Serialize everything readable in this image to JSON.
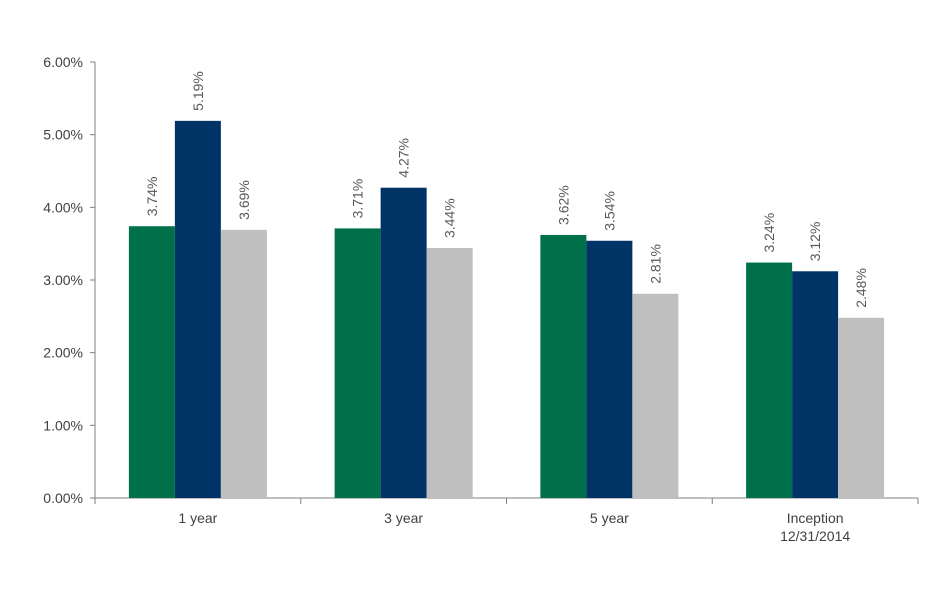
{
  "chart_data": {
    "type": "bar",
    "title": "",
    "xlabel": "",
    "ylabel": "",
    "ylim": [
      0,
      6
    ],
    "yticks": [
      0,
      1,
      2,
      3,
      4,
      5,
      6
    ],
    "ytick_labels": [
      "0.00%",
      "1.00%",
      "2.00%",
      "3.00%",
      "4.00%",
      "5.00%",
      "6.00%"
    ],
    "grid": false,
    "legend": "none",
    "categories": [
      [
        "1 year"
      ],
      [
        "3 year"
      ],
      [
        "5 year"
      ],
      [
        "Inception",
        "12/31/2014"
      ]
    ],
    "series": [
      {
        "values": [
          3.74,
          3.71,
          3.62,
          3.24
        ],
        "labels": [
          "3.74%",
          "3.71%",
          "3.62%",
          "3.24%"
        ],
        "color": "#00704a"
      },
      {
        "values": [
          5.19,
          4.27,
          3.54,
          3.12
        ],
        "labels": [
          "5.19%",
          "4.27%",
          "3.54%",
          "3.12%"
        ],
        "color": "#003366"
      },
      {
        "values": [
          3.69,
          3.44,
          2.81,
          2.48
        ],
        "labels": [
          "3.69%",
          "3.44%",
          "2.81%",
          "2.48%"
        ],
        "color": "#bfbfbf"
      }
    ]
  }
}
